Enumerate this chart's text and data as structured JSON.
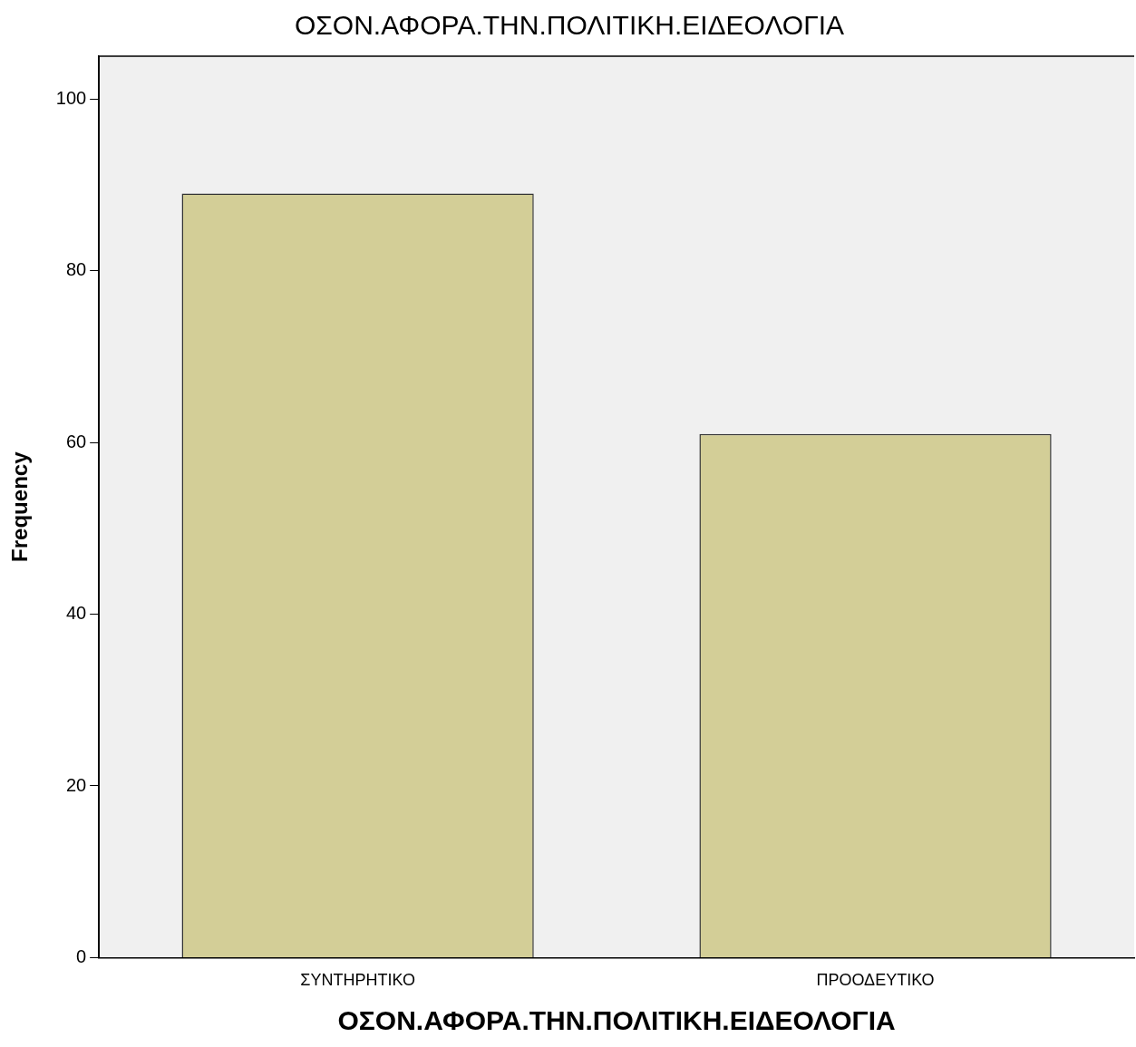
{
  "chart_data": {
    "type": "bar",
    "title": "ΟΣΟΝ.ΑΦΟΡΑ.ΤΗΝ.ΠΟΛΙΤΙΚΗ.ΕΙΔΕΟΛΟΓΙΑ",
    "xlabel": "ΟΣΟΝ.ΑΦΟΡΑ.ΤΗΝ.ΠΟΛΙΤΙΚΗ.ΕΙΔΕΟΛΟΓΙΑ",
    "ylabel": "Frequency",
    "categories": [
      "ΣΥΝΤΗΡΗΤΙΚΟ",
      "ΠΡΟΟΔΕΥΤΙΚΟ"
    ],
    "values": [
      89,
      61
    ],
    "color": "#d3ce97",
    "ylim": [
      0,
      105
    ],
    "yticks": [
      0,
      20,
      40,
      60,
      80,
      100
    ],
    "grid": false,
    "legend": false
  }
}
